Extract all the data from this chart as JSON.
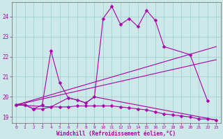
{
  "xlabel": "Windchill (Refroidissement éolien,°C)",
  "xlim": [
    -0.5,
    23.5
  ],
  "ylim": [
    18.7,
    24.7
  ],
  "yticks": [
    19,
    20,
    21,
    22,
    23,
    24
  ],
  "xticks": [
    0,
    1,
    2,
    3,
    4,
    5,
    6,
    7,
    8,
    9,
    10,
    11,
    12,
    13,
    14,
    15,
    16,
    17,
    18,
    19,
    20,
    21,
    22,
    23
  ],
  "bg_color": "#cce8e8",
  "grid_color": "#99cccc",
  "line_color": "#aa00aa",
  "series1_x": [
    0,
    1,
    2,
    3,
    4,
    5,
    6,
    7,
    8,
    9,
    10,
    11,
    12,
    13,
    14,
    15,
    16,
    17,
    20,
    22
  ],
  "series1_y": [
    19.6,
    19.6,
    19.4,
    19.6,
    22.3,
    20.7,
    19.95,
    19.85,
    19.7,
    20.0,
    23.9,
    24.5,
    23.6,
    23.9,
    23.5,
    24.3,
    23.8,
    22.5,
    22.1,
    19.8
  ],
  "series2_x": [
    0,
    1,
    2,
    3,
    4,
    5,
    6,
    7,
    8,
    9,
    10,
    11,
    12,
    13,
    14,
    15,
    16,
    17,
    18,
    19,
    20,
    21,
    22,
    23
  ],
  "series2_y": [
    19.6,
    19.6,
    19.4,
    19.4,
    19.5,
    19.5,
    19.5,
    19.55,
    19.55,
    19.55,
    19.55,
    19.55,
    19.5,
    19.45,
    19.4,
    19.35,
    19.25,
    19.15,
    19.1,
    19.05,
    19.0,
    18.9,
    18.9,
    18.85
  ],
  "series3_x": [
    0,
    23
  ],
  "series3_y": [
    19.6,
    22.5
  ],
  "series4_x": [
    0,
    23
  ],
  "series4_y": [
    19.6,
    21.85
  ],
  "series5_x": [
    0,
    4,
    6,
    7,
    8,
    9,
    23
  ],
  "series5_y": [
    19.6,
    19.5,
    19.95,
    19.85,
    19.7,
    20.0,
    18.85
  ]
}
